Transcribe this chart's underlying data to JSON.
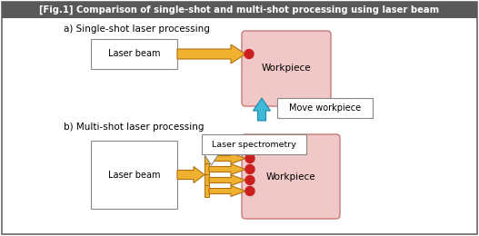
{
  "title": "[Fig.1] Comparison of single-shot and multi-shot processing using laser beam",
  "title_bg": "#595959",
  "title_fg": "#ffffff",
  "bg_color": "#ffffff",
  "border_color": "#666666",
  "label_a": "a) Single-shot laser processing",
  "label_b": "b) Multi-shot laser processing",
  "laser_beam_label": "Laser beam",
  "workpiece_label": "Workpiece",
  "move_workpiece_label": "Move workpiece",
  "laser_spectrometry_label": "Laser spectrometry",
  "workpiece_fill": "#f0c8c8",
  "workpiece_border": "#c87878",
  "box_fill": "#ffffff",
  "box_border": "#888888",
  "arrow_fill": "#f0b030",
  "arrow_edge": "#b07010",
  "cyan_arrow_fill": "#40b8d8",
  "cyan_arrow_edge": "#1888a8",
  "dot_color": "#cc2020",
  "grating_fill": "#f0b030",
  "grating_edge": "#b07010",
  "callout_fill": "#ffffff",
  "callout_border": "#888888"
}
